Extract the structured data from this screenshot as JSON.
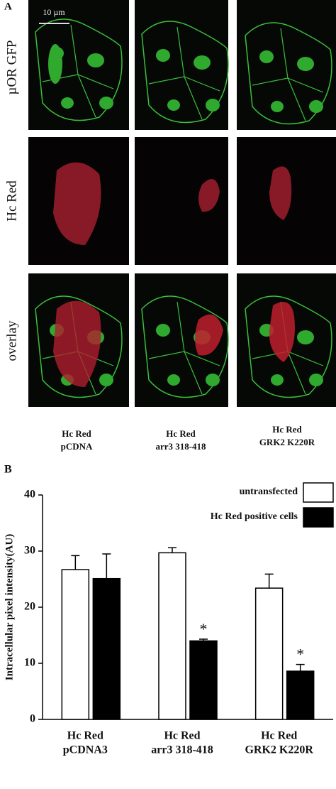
{
  "panel_a": {
    "label": "A",
    "scale_bar": "10 µm",
    "rows": [
      "µOR GFP",
      "Hc Red",
      "overlay"
    ],
    "columns": [
      [
        "Hc Red",
        "pCDNA"
      ],
      [
        "Hc Red",
        "arr3 318-418"
      ],
      [
        "Hc Red",
        "GRK2 K220R"
      ]
    ]
  },
  "chart_data": {
    "type": "bar",
    "panel_label": "B",
    "y_label": "Intracellular pixel intensity(AU)",
    "categories": [
      [
        "Hc Red",
        "pCDNA3"
      ],
      [
        "Hc Red",
        "arr3 318-418"
      ],
      [
        "Hc Red",
        "GRK2 K220R"
      ]
    ],
    "series": [
      {
        "name": "untransfected",
        "color": "#ffffff",
        "values": [
          26.7,
          29.7,
          23.4
        ],
        "errors": [
          2.5,
          0.9,
          2.5
        ]
      },
      {
        "name": "Hc Red positive cells",
        "color": "#000000",
        "values": [
          25.1,
          14.0,
          8.6
        ],
        "errors": [
          4.4,
          0.3,
          1.2
        ],
        "significance": [
          null,
          "*",
          "*"
        ]
      }
    ],
    "ylim": [
      0,
      40
    ],
    "yticks": [
      0,
      10,
      20,
      30,
      40
    ],
    "grid": false,
    "legend": "top-right"
  }
}
